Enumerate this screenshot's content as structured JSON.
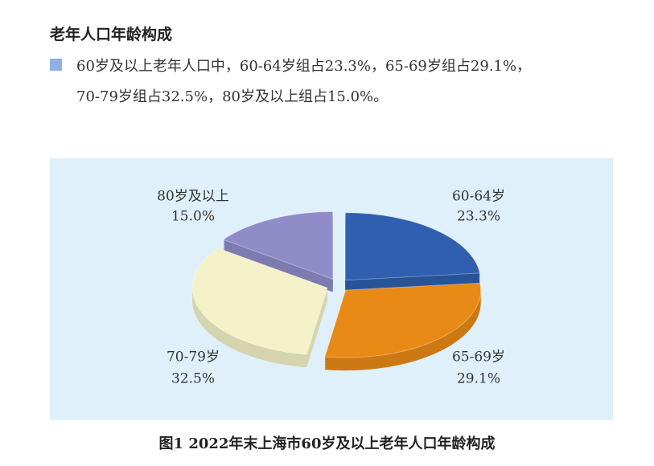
{
  "heading": "老年人口年龄构成",
  "paragraph": {
    "lines": [
      "60岁及以上老年人口中，60-64岁组占23.3%，65-69岁组占29.1%，",
      "70-79岁组占32.5%，80岁及以上组占15.0%。"
    ]
  },
  "chart_data": {
    "type": "pie",
    "categories": [
      "60-64岁",
      "65-69岁",
      "70-79岁",
      "80岁及以上"
    ],
    "values": [
      23.3,
      29.1,
      32.5,
      15.0
    ],
    "value_labels": [
      "23.3%",
      "29.1%",
      "32.5%",
      "15.0%"
    ],
    "colors": [
      "#2f5fae",
      "#e98a17",
      "#f4f2c8",
      "#8f8cc8"
    ]
  },
  "caption": "图1  2022年末上海市60岁及以上老年人口年龄构成"
}
